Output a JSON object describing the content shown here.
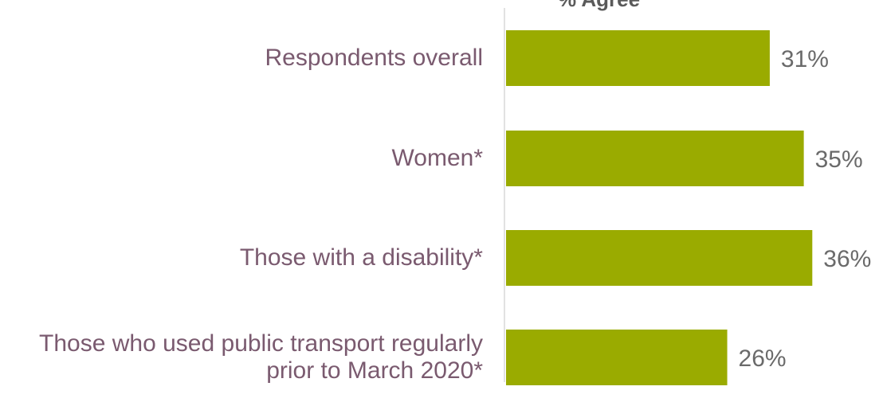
{
  "chart_data": {
    "type": "bar",
    "orientation": "horizontal",
    "title": "% Agree",
    "categories": [
      "Respondents overall",
      "Women*",
      "Those with a disability*",
      "Those who used public transport regularly prior to March 2020*"
    ],
    "values": [
      31,
      35,
      36,
      26
    ],
    "value_labels": [
      "31%",
      "35%",
      "36%",
      "26%"
    ],
    "xlim": [
      0,
      40
    ],
    "grid": false,
    "bar_color": "#9aab00",
    "label_color": "#7a5a6f",
    "value_label_color": "#6a6a6a"
  }
}
